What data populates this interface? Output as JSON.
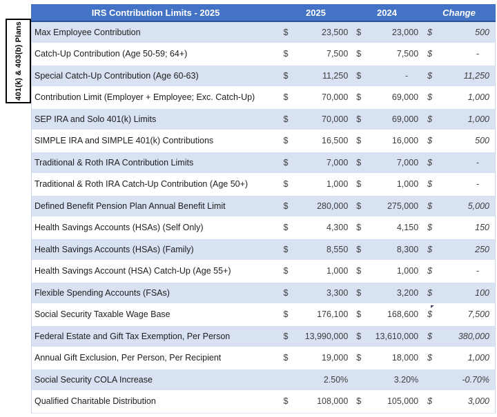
{
  "side_label": "401(k) & 403(b) Plans",
  "table": {
    "title": "IRS Contribution Limits - 2025",
    "columns": [
      "2025",
      "2024",
      "Change"
    ],
    "currency_symbol": "$",
    "rows": [
      {
        "label": "Max Employee Contribution",
        "v2025": "23,500",
        "v2024": "23,000",
        "change": "500",
        "currency": true
      },
      {
        "label": "Catch-Up Contribution (Age 50-59; 64+)",
        "v2025": "7,500",
        "v2024": "7,500",
        "change": "-",
        "currency": true
      },
      {
        "label": "Special Catch-Up Contribution (Age 60-63)",
        "v2025": "11,250",
        "v2024": "-",
        "change": "11,250",
        "currency": true
      },
      {
        "label": "Contribution Limit (Employer + Employee; Exc. Catch-Up)",
        "v2025": "70,000",
        "v2024": "69,000",
        "change": "1,000",
        "currency": true
      },
      {
        "label": "SEP IRA and Solo 401(k) Limits",
        "v2025": "70,000",
        "v2024": "69,000",
        "change": "1,000",
        "currency": true
      },
      {
        "label": "SIMPLE IRA and SIMPLE 401(k) Contributions",
        "v2025": "16,500",
        "v2024": "16,000",
        "change": "500",
        "currency": true
      },
      {
        "label": "Traditional & Roth IRA Contribution Limits",
        "v2025": "7,000",
        "v2024": "7,000",
        "change": "-",
        "currency": true
      },
      {
        "label": "Traditional & Roth IRA Catch-Up Contribution (Age 50+)",
        "v2025": "1,000",
        "v2024": "1,000",
        "change": "-",
        "currency": true
      },
      {
        "label": "Defined Benefit Pension Plan Annual Benefit Limit",
        "v2025": "280,000",
        "v2024": "275,000",
        "change": "5,000",
        "currency": true
      },
      {
        "label": "Health Savings Accounts (HSAs) (Self Only)",
        "v2025": "4,300",
        "v2024": "4,150",
        "change": "150",
        "currency": true
      },
      {
        "label": "Health Savings Accounts (HSAs) (Family)",
        "v2025": "8,550",
        "v2024": "8,300",
        "change": "250",
        "currency": true
      },
      {
        "label": "Health Savings Account (HSA) Catch-Up (Age 55+)",
        "v2025": "1,000",
        "v2024": "1,000",
        "change": "-",
        "currency": true
      },
      {
        "label": "Flexible Spending Accounts (FSAs)",
        "v2025": "3,300",
        "v2024": "3,200",
        "change": "100",
        "currency": true
      },
      {
        "label": "Social Security Taxable Wage Base",
        "v2025": "176,100",
        "v2024": "168,600",
        "change": "7,500",
        "currency": true
      },
      {
        "label": "Federal Estate and Gift Tax Exemption, Per Person",
        "v2025": "13,990,000",
        "v2024": "13,610,000",
        "change": "380,000",
        "currency": true
      },
      {
        "label": "Annual Gift Exclusion, Per Person, Per Recipient",
        "v2025": "19,000",
        "v2024": "18,000",
        "change": "1,000",
        "currency": true
      },
      {
        "label": "Social Security COLA Increase",
        "v2025": "2.50%",
        "v2024": "3.20%",
        "change": "-0.70%",
        "currency": false
      },
      {
        "label": "Qualified Charitable Distribution",
        "v2025": "108,000",
        "v2024": "105,000",
        "change": "3,000",
        "currency": true
      }
    ]
  },
  "colors": {
    "header_bg": "#4472c4",
    "header_border": "#2e5395",
    "band_row_bg": "#d9e2f3",
    "plain_row_bg": "#ffffff",
    "header_text": "#ffffff",
    "label_text": "#1c1c1c",
    "value_text": "#3d3d3d"
  }
}
